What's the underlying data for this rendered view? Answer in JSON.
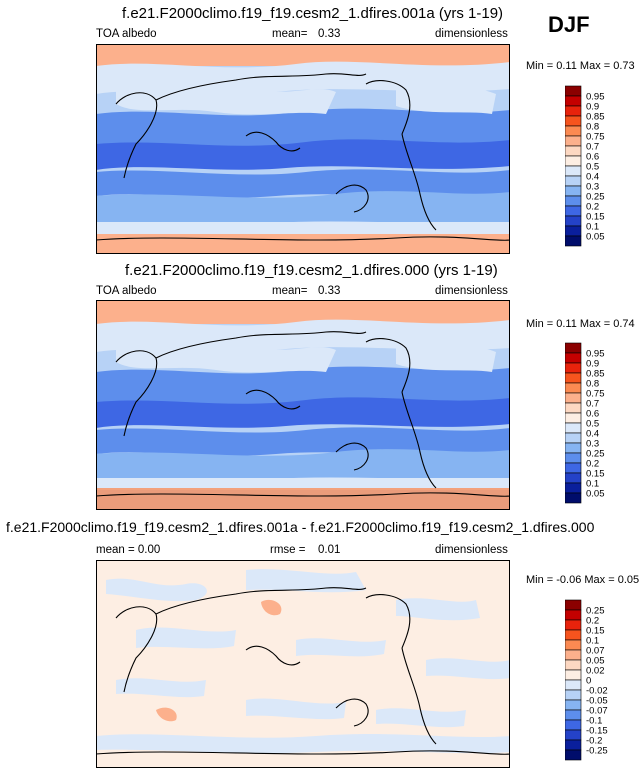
{
  "season": "DJF",
  "panels": [
    {
      "id": "p1",
      "title": "f.e21.F2000climo.f19_f19.cesm2_1.dfires.001a (yrs 1-19)",
      "left_label": "TOA albedo",
      "stat_label": "mean=",
      "stat_value": "0.33",
      "units": "dimensionless",
      "minmax": "Min =  0.11  Max =  0.73",
      "levels": [
        "0.95",
        "0.9",
        "0.85",
        "0.8",
        "0.75",
        "0.7",
        "0.6",
        "0.5",
        "0.4",
        "0.3",
        "0.25",
        "0.2",
        "0.15",
        "0.1",
        "0.05"
      ],
      "colors": [
        "#8b0000",
        "#c40000",
        "#e8230c",
        "#f6541e",
        "#fb8a52",
        "#fcb08c",
        "#fdd8c2",
        "#fdeee3",
        "#dbe8f9",
        "#b7d2f6",
        "#86b4f2",
        "#5d8eec",
        "#3e67e4",
        "#2442c8",
        "#0a1f9c",
        "#000d6b"
      ]
    },
    {
      "id": "p2",
      "title": "f.e21.F2000climo.f19_f19.cesm2_1.dfires.000 (yrs 1-19)",
      "left_label": "TOA albedo",
      "stat_label": "mean=",
      "stat_value": "0.33",
      "units": "dimensionless",
      "minmax": "Min =  0.11  Max =  0.74",
      "levels": [
        "0.95",
        "0.9",
        "0.85",
        "0.8",
        "0.75",
        "0.7",
        "0.6",
        "0.5",
        "0.4",
        "0.3",
        "0.25",
        "0.2",
        "0.15",
        "0.1",
        "0.05"
      ],
      "colors": [
        "#8b0000",
        "#c40000",
        "#e8230c",
        "#f6541e",
        "#fb8a52",
        "#fcb08c",
        "#fdd8c2",
        "#fdeee3",
        "#dbe8f9",
        "#b7d2f6",
        "#86b4f2",
        "#5d8eec",
        "#3e67e4",
        "#2442c8",
        "#0a1f9c",
        "#000d6b"
      ]
    },
    {
      "id": "p3",
      "title": "f.e21.F2000climo.f19_f19.cesm2_1.dfires.001a - f.e21.F2000climo.f19_f19.cesm2_1.dfires.000",
      "left_label": "mean =  0.00",
      "stat_label": "rmse =",
      "stat_value": "0.01",
      "units": "dimensionless",
      "minmax": "Min =  -0.06  Max =  0.05",
      "levels": [
        "0.25",
        "0.2",
        "0.15",
        "0.1",
        "0.07",
        "0.05",
        "0.02",
        "0",
        "-0.02",
        "-0.05",
        "-0.07",
        "-0.1",
        "-0.15",
        "-0.2",
        "-0.25"
      ],
      "colors": [
        "#8b0000",
        "#c40000",
        "#e8230c",
        "#f6541e",
        "#fb8a52",
        "#fcb08c",
        "#fdd8c2",
        "#fdeee3",
        "#dbe8f9",
        "#b7d2f6",
        "#86b4f2",
        "#5d8eec",
        "#3e67e4",
        "#2442c8",
        "#0a1f9c",
        "#000d6b"
      ]
    }
  ],
  "chart_data": [
    {
      "type": "heatmap",
      "title": "f.e21.F2000climo.f19_f19.cesm2_1.dfires.001a (yrs 1-19)",
      "variable": "TOA albedo",
      "units": "dimensionless",
      "season": "DJF",
      "mean": 0.33,
      "min": 0.11,
      "max": 0.73,
      "contour_levels": [
        0.05,
        0.1,
        0.15,
        0.2,
        0.25,
        0.3,
        0.4,
        0.5,
        0.6,
        0.7,
        0.75,
        0.8,
        0.85,
        0.9,
        0.95
      ]
    },
    {
      "type": "heatmap",
      "title": "f.e21.F2000climo.f19_f19.cesm2_1.dfires.000 (yrs 1-19)",
      "variable": "TOA albedo",
      "units": "dimensionless",
      "season": "DJF",
      "mean": 0.33,
      "min": 0.11,
      "max": 0.74,
      "contour_levels": [
        0.05,
        0.1,
        0.15,
        0.2,
        0.25,
        0.3,
        0.4,
        0.5,
        0.6,
        0.7,
        0.75,
        0.8,
        0.85,
        0.9,
        0.95
      ]
    },
    {
      "type": "heatmap",
      "title": "f.e21.F2000climo.f19_f19.cesm2_1.dfires.001a - f.e21.F2000climo.f19_f19.cesm2_1.dfires.000",
      "units": "dimensionless",
      "season": "DJF",
      "mean": 0.0,
      "rmse": 0.01,
      "min": -0.06,
      "max": 0.05,
      "contour_levels": [
        -0.25,
        -0.2,
        -0.15,
        -0.1,
        -0.07,
        -0.05,
        -0.02,
        0,
        0.02,
        0.05,
        0.07,
        0.1,
        0.15,
        0.2,
        0.25
      ]
    }
  ]
}
